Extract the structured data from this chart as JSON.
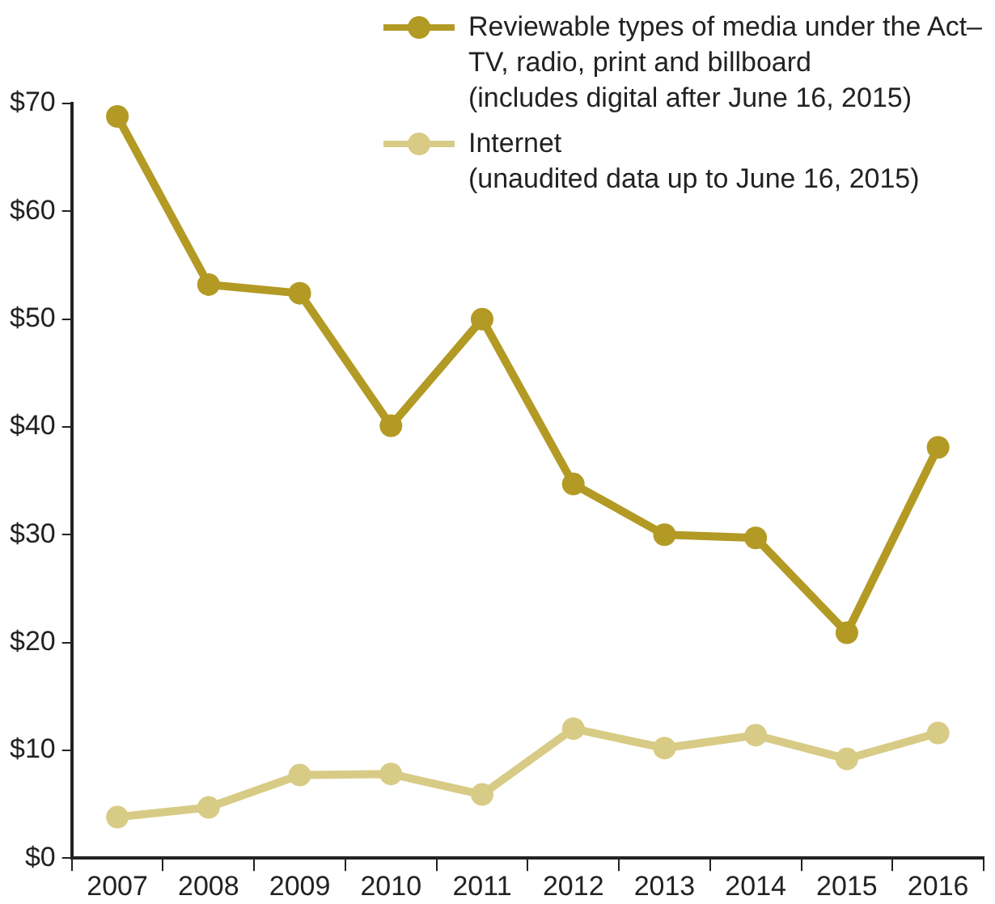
{
  "chart_data": {
    "type": "line",
    "categories": [
      "2007",
      "2008",
      "2009",
      "2010",
      "2011",
      "2012",
      "2013",
      "2014",
      "2015",
      "2016"
    ],
    "series": [
      {
        "name": "Reviewable types of media under the Act–\nTV, radio, print and billboard\n(includes digital after June 16, 2015)",
        "color": "#b39a24",
        "values": [
          68.8,
          53.2,
          52.4,
          40.1,
          50.0,
          34.7,
          30.0,
          29.7,
          20.9,
          38.1
        ]
      },
      {
        "name": "Internet\n(unaudited data up to June 16, 2015)",
        "color": "#d8cb86",
        "values": [
          3.8,
          4.7,
          7.7,
          7.8,
          5.9,
          12.0,
          10.2,
          11.4,
          9.2,
          11.6
        ]
      }
    ],
    "ylim": [
      0,
      70
    ],
    "yticks": [
      {
        "value": 0,
        "label": "$0"
      },
      {
        "value": 10,
        "label": "$10"
      },
      {
        "value": 20,
        "label": "$20"
      },
      {
        "value": 30,
        "label": "$30"
      },
      {
        "value": 40,
        "label": "$40"
      },
      {
        "value": 50,
        "label": "$50"
      },
      {
        "value": 60,
        "label": "$60"
      },
      {
        "value": 70,
        "label": "$70"
      }
    ],
    "grid": false,
    "legend": "top right",
    "marker": "circle",
    "line_style": "solid"
  }
}
